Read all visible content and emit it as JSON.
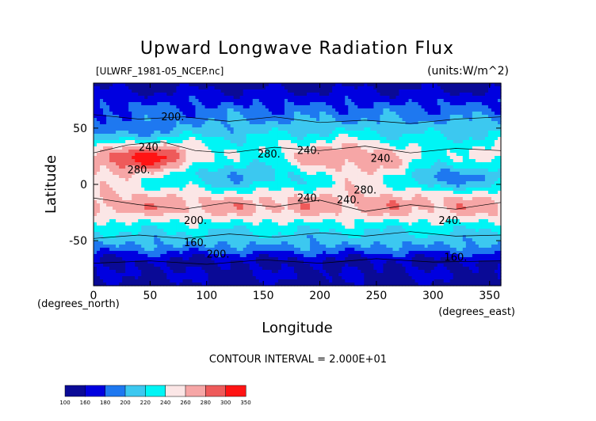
{
  "chart_data": {
    "type": "heatmap",
    "title": "Upward Longwave Radiation Flux",
    "source_label": "[ULWRF_1981-05_NCEP.nc]",
    "units_label": "(units:W/m^2)",
    "xlabel": "Longitude",
    "ylabel": "Latitude",
    "x_unit_label": "(degrees_east)",
    "y_unit_label": "(degrees_north)",
    "xlim": [
      0,
      360
    ],
    "ylim": [
      -90,
      90
    ],
    "x_ticks": [
      0,
      50,
      100,
      150,
      200,
      250,
      300,
      350
    ],
    "y_ticks": [
      50,
      0,
      -50
    ],
    "contour_interval_text": "CONTOUR INTERVAL = 2.000E+01",
    "contour_labels": [
      "200.",
      "240.",
      "280.",
      "240.",
      "280.",
      "240.",
      "280.",
      "240.",
      "240.",
      "200.",
      "160.",
      "200.",
      "240.",
      "160."
    ],
    "colorbar": {
      "levels": [
        100,
        160,
        180,
        200,
        220,
        240,
        260,
        280,
        300,
        350
      ],
      "colors": [
        "#0a0a96",
        "#0000e0",
        "#1e78f0",
        "#3cc8f0",
        "#00f5f5",
        "#fbe6e6",
        "#f6a6a6",
        "#ee5a5a",
        "#ff1414"
      ]
    }
  }
}
